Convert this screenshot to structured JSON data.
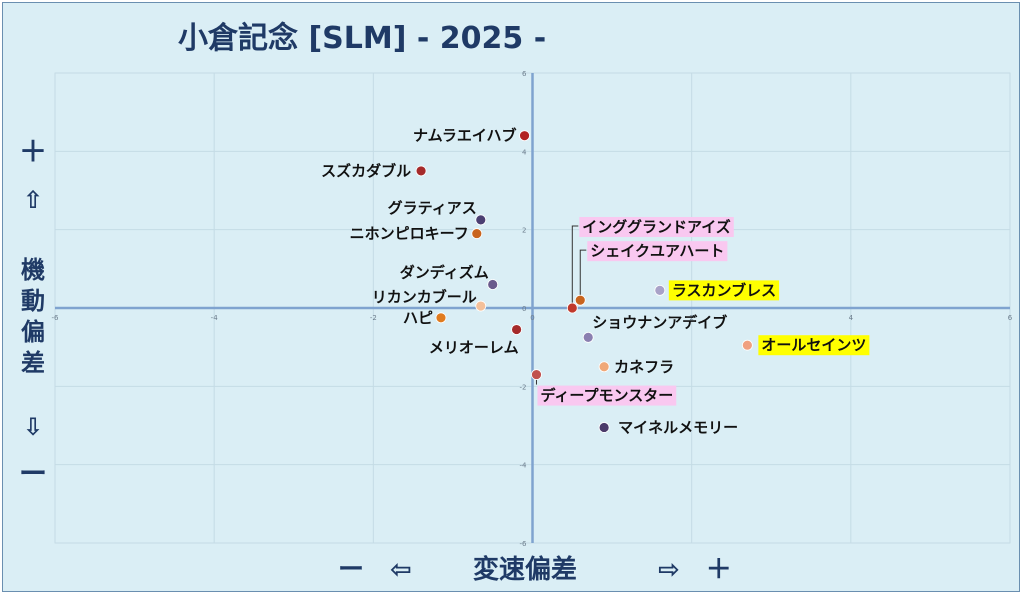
{
  "chart_data": {
    "type": "scatter",
    "title": "小倉記念 [SLM]  - 2025 -",
    "xlabel": "変速偏差",
    "ylabel": "機動偏差",
    "x_neg_marker": "ー　⇦",
    "x_pos_marker": "⇨　＋",
    "y_pos_marker": [
      "＋",
      "⇧"
    ],
    "y_neg_marker": [
      "⇩",
      "ー"
    ],
    "xlim": [
      -6,
      6
    ],
    "ylim": [
      -6,
      6
    ],
    "x_ticks": [
      "-6",
      "-4",
      "-2",
      "0",
      "2",
      "4",
      "6"
    ],
    "y_ticks": [
      "6",
      "4",
      "2",
      "0",
      "-2",
      "-4",
      "-6"
    ],
    "grid": true,
    "points": [
      {
        "name": "ナムラエイハブ",
        "x": -0.1,
        "y": 4.4,
        "color": "#b22222",
        "highlight": "none"
      },
      {
        "name": "スズカダブル",
        "x": -1.4,
        "y": 3.5,
        "color": "#a52a2a",
        "highlight": "none"
      },
      {
        "name": "グラティアス",
        "x": -0.65,
        "y": 2.25,
        "color": "#4b3f72",
        "highlight": "none"
      },
      {
        "name": "ニホンピロキーフ",
        "x": -0.7,
        "y": 1.9,
        "color": "#c8641e",
        "highlight": "none"
      },
      {
        "name": "インググランドアイズ",
        "x": 0.5,
        "y": 0.0,
        "color": "#c0392b",
        "highlight": "pink"
      },
      {
        "name": "シェイクユアハート",
        "x": 0.6,
        "y": 0.2,
        "color": "#c8641e",
        "highlight": "pink"
      },
      {
        "name": "ダンディズム",
        "x": -0.5,
        "y": 0.6,
        "color": "#6a5a8c",
        "highlight": "none"
      },
      {
        "name": "リカンカブール",
        "x": -0.65,
        "y": 0.05,
        "color": "#f4c09a",
        "highlight": "none"
      },
      {
        "name": "ラスカンブレス",
        "x": 1.6,
        "y": 0.45,
        "color": "#a8a2c8",
        "highlight": "yellow"
      },
      {
        "name": "ハピ",
        "x": -1.15,
        "y": -0.25,
        "color": "#e07b1f",
        "highlight": "none"
      },
      {
        "name": "メリオーレム",
        "x": -0.2,
        "y": -0.55,
        "color": "#a52a2a",
        "highlight": "none"
      },
      {
        "name": "ショウナンアデイブ",
        "x": 0.7,
        "y": -0.75,
        "color": "#8a7fb0",
        "highlight": "none"
      },
      {
        "name": "オールセインツ",
        "x": 2.7,
        "y": -0.95,
        "color": "#f0a080",
        "highlight": "yellow"
      },
      {
        "name": "カネフラ",
        "x": 0.9,
        "y": -1.5,
        "color": "#f0a878",
        "highlight": "none"
      },
      {
        "name": "ディープモンスター",
        "x": 0.05,
        "y": -1.7,
        "color": "#c0504d",
        "highlight": "pink"
      },
      {
        "name": "マイネルメモリー",
        "x": 0.9,
        "y": -3.05,
        "color": "#4b3a6a",
        "highlight": "none"
      }
    ]
  }
}
